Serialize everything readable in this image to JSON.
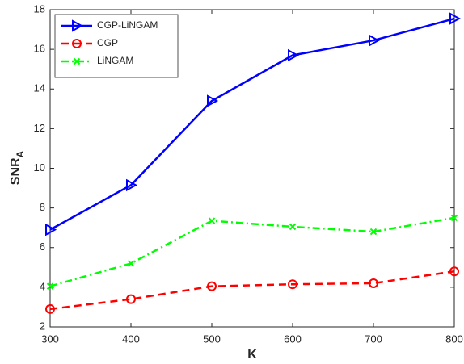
{
  "chart_data": {
    "type": "line",
    "x_label": "K",
    "y_label": {
      "text": "SNR",
      "subscript": "A"
    },
    "x": [
      300,
      400,
      500,
      600,
      700,
      800
    ],
    "series": [
      {
        "name": "CGP-LiNGAM",
        "color": "#0000ff",
        "marker": "triangle-right",
        "line_style": "solid",
        "values": [
          6.9,
          9.15,
          13.4,
          15.7,
          16.45,
          17.55
        ]
      },
      {
        "name": "CGP",
        "color": "#ff0000",
        "marker": "circle",
        "line_style": "dashed",
        "values": [
          2.9,
          3.4,
          4.05,
          4.15,
          4.2,
          4.8
        ]
      },
      {
        "name": "LiNGAM",
        "color": "#00ff00",
        "marker": "x",
        "line_style": "dashdot",
        "values": [
          4.05,
          5.2,
          7.35,
          7.05,
          6.8,
          7.5
        ]
      }
    ],
    "xlim": [
      300,
      800
    ],
    "xticks": [
      300,
      400,
      500,
      600,
      700,
      800
    ],
    "ylim": [
      2,
      18
    ],
    "yticks": [
      2,
      4,
      6,
      8,
      10,
      12,
      14,
      16,
      18
    ],
    "grid": false,
    "legend": "upper left"
  }
}
